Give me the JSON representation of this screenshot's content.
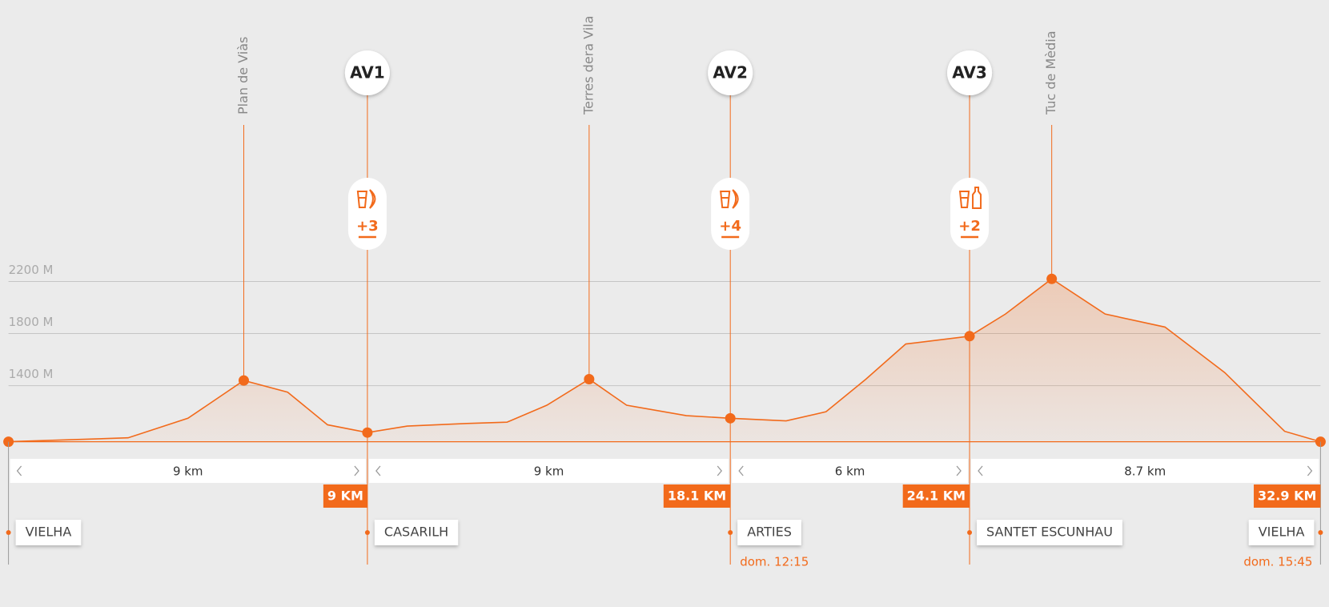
{
  "chart_data": {
    "type": "area",
    "color": "#f26a1b",
    "x": [
      0,
      1.5,
      3,
      4.5,
      5.9,
      7,
      8,
      9,
      10,
      11.5,
      12.5,
      13.5,
      14.56,
      15.5,
      17,
      18.1,
      19.5,
      20.5,
      21.5,
      22.5,
      24.1,
      25,
      26.16,
      27.5,
      29,
      30.5,
      32,
      32.9
    ],
    "values": [
      970,
      985,
      1000,
      1150,
      1440,
      1350,
      1100,
      1040,
      1090,
      1110,
      1120,
      1250,
      1450,
      1250,
      1170,
      1150,
      1130,
      1200,
      1450,
      1720,
      1780,
      1950,
      2220,
      1950,
      1850,
      1500,
      1050,
      970
    ],
    "xlim": [
      0,
      32.9
    ],
    "ylim": [
      970,
      2300
    ],
    "yticks": [
      {
        "value": 1400,
        "label": "1400 M"
      },
      {
        "value": 1800,
        "label": "1800 M"
      },
      {
        "value": 2200,
        "label": "2200 M"
      }
    ],
    "grid": true,
    "peaks": [
      {
        "name": "Plan de Viàs",
        "x": 5.9,
        "value": 1440
      },
      {
        "name": "Terres dera Vila",
        "x": 14.56,
        "value": 1450
      },
      {
        "name": "Tuc de Mèdia",
        "x": 26.16,
        "value": 2220
      }
    ],
    "aid_stations": [
      {
        "name": "AV1",
        "x": 9,
        "value": 1040,
        "items": "+3"
      },
      {
        "name": "AV2",
        "x": 18.1,
        "value": 1150,
        "items": "+4"
      },
      {
        "name": "AV3",
        "x": 24.1,
        "value": 1780,
        "items": "+2"
      }
    ],
    "checkpoints": [
      {
        "x": 0,
        "location": "VIELHA"
      },
      {
        "x": 9,
        "x_label": "9 KM",
        "location": "CASARILH"
      },
      {
        "x": 18.1,
        "x_label": "18.1 KM",
        "location": "ARTIES",
        "time": "dom. 12:15"
      },
      {
        "x": 24.1,
        "x_label": "24.1 KM",
        "location": "SANTET ESCUNHAU"
      },
      {
        "x": 32.9,
        "x_label": "32.9 KM",
        "location": "VIELHA",
        "time": "dom. 15:45"
      }
    ],
    "segments": [
      "9 km",
      "9 km",
      "6 km",
      "8.7 km"
    ]
  }
}
